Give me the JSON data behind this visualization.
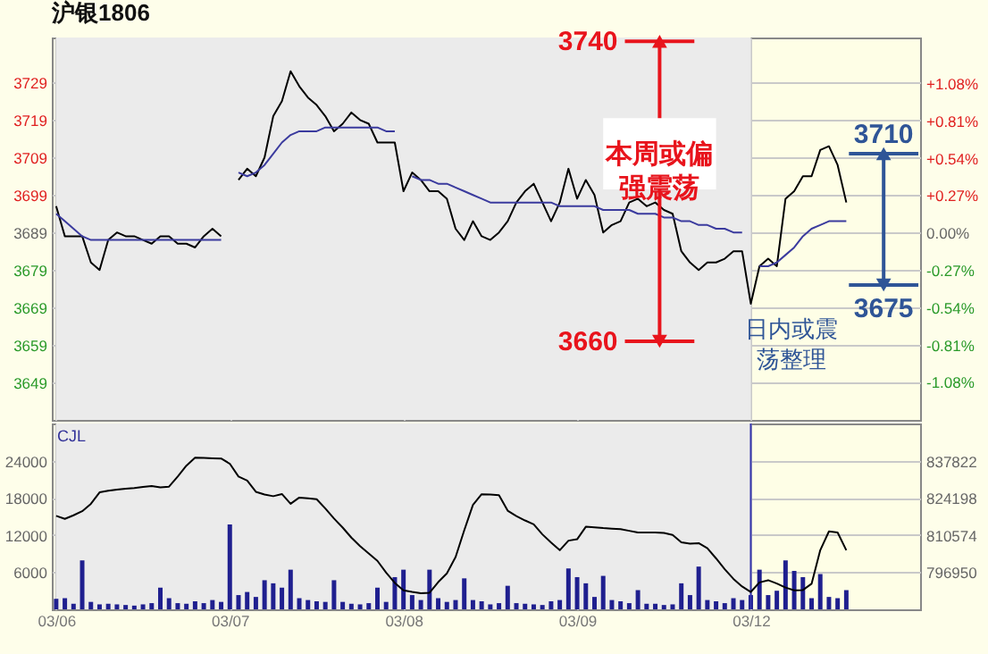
{
  "chart_data": [
    {
      "type": "line",
      "title": "沪银1806",
      "annotations": [
        "本周或偏强震荡",
        "日内或震荡整理"
      ],
      "categories": [
        "03/06",
        null,
        null,
        null,
        null,
        null,
        null,
        null,
        null,
        null,
        null,
        null,
        null,
        null,
        null,
        null,
        null,
        null,
        null,
        null,
        "03/07",
        null,
        null,
        null,
        null,
        null,
        null,
        null,
        null,
        null,
        null,
        null,
        null,
        null,
        null,
        null,
        null,
        null,
        null,
        null,
        "03/08",
        null,
        null,
        null,
        null,
        null,
        null,
        null,
        null,
        null,
        null,
        null,
        null,
        null,
        null,
        null,
        null,
        null,
        null,
        null,
        "03/09",
        null,
        null,
        null,
        null,
        null,
        null,
        null,
        null,
        null,
        null,
        null,
        null,
        null,
        null,
        null,
        null,
        null,
        null,
        null,
        "03/12",
        null,
        null,
        null,
        null,
        null,
        null,
        null,
        null,
        null,
        null,
        null,
        null,
        null,
        null,
        null,
        null,
        null,
        null,
        null
      ],
      "series": [
        {
          "color": "#000000",
          "values": [
            3696,
            3688,
            3688,
            3688,
            3681,
            3679,
            3687,
            3689,
            3688,
            3688,
            3687,
            3686,
            3688,
            3688,
            3686,
            3686,
            3685,
            3688,
            3690,
            3688,
            null,
            3703,
            3706,
            3704,
            3709,
            3720,
            3724,
            3732,
            3728,
            3725,
            3723,
            3720,
            3716,
            3718,
            3721,
            3719,
            3718,
            3713,
            3713,
            3713,
            3700,
            3705,
            3703,
            3700,
            3700,
            3698,
            3690,
            3687,
            3692,
            3688,
            3687,
            3689,
            3692,
            3697,
            3700,
            3702,
            3697,
            3692,
            3697,
            3706,
            3698,
            3703,
            3699,
            3689,
            3691,
            3692,
            3697,
            3698,
            3696,
            3697,
            3695,
            3694,
            3684,
            3681,
            3679,
            3681,
            3681,
            3682,
            3684,
            3684,
            3670,
            3680,
            3682,
            3680,
            3698,
            3700,
            3704,
            3704,
            3711,
            3712,
            3707,
            3697,
            null,
            null,
            null,
            null,
            null,
            null,
            null,
            null
          ]
        },
        {
          "color": "#3b3b9e",
          "values": [
            3694,
            3692,
            3690,
            3688,
            3687,
            3687,
            3687,
            3687,
            3687,
            3687,
            3687,
            3687,
            3687,
            3687,
            3687,
            3687,
            3687,
            3687,
            3687,
            3687,
            null,
            3705,
            3704,
            3705,
            3707,
            3710,
            3713,
            3715,
            3716,
            3716,
            3716,
            3717,
            3717,
            3717,
            3717,
            3717,
            3717,
            3717,
            3716,
            3716,
            null,
            3704,
            3703,
            3703,
            3702,
            3702,
            3701,
            3700,
            3699,
            3698,
            3697,
            3697,
            3697,
            3697,
            3697,
            3697,
            3697,
            3697,
            3696,
            3696,
            3696,
            3696,
            3696,
            3695,
            3695,
            3695,
            3695,
            3694,
            3694,
            3694,
            3693,
            3693,
            3692,
            3692,
            3691,
            3691,
            3690,
            3690,
            3689,
            3689,
            null,
            3680,
            3680,
            3681,
            3683,
            3685,
            3688,
            3690,
            3691,
            3692,
            3692,
            3692,
            null,
            null,
            null,
            null,
            null,
            null,
            null,
            null
          ]
        }
      ],
      "ylim": [
        3639,
        3741
      ],
      "yticks": [
        3649,
        3659,
        3669,
        3679,
        3689,
        3699,
        3709,
        3719,
        3729
      ],
      "y2lim": [
        -1.355,
        1.41
      ],
      "y2ticks": [
        {
          "value": -1.08,
          "label": "-1.08%"
        },
        {
          "value": -0.81,
          "label": "-0.81%"
        },
        {
          "value": -0.54,
          "label": "-0.54%"
        },
        {
          "value": -0.27,
          "label": "-0.27%"
        },
        {
          "value": 0,
          "label": "0.00%"
        },
        {
          "value": 0.27,
          "label": "+0.27%"
        },
        {
          "value": 0.54,
          "label": "+0.54%"
        },
        {
          "value": 0.81,
          "label": "+0.81%"
        },
        {
          "value": 1.08,
          "label": "+1.08%"
        }
      ],
      "ref_lines": [
        {
          "axis": "y",
          "value": 3740,
          "label": "3740",
          "color": "#e8141c"
        },
        {
          "axis": "y",
          "value": 3660,
          "label": "3660",
          "color": "#e8141c"
        },
        {
          "axis": "y",
          "value": 3710,
          "label": "3710",
          "color": "#2f5597"
        },
        {
          "axis": "y",
          "value": 3675,
          "label": "3675",
          "color": "#2f5597"
        }
      ],
      "bands": [
        {
          "axis": "x",
          "from": "03/06",
          "to": "03/12",
          "color": "#ebebeb"
        }
      ],
      "grid": true,
      "tick_labels": "y"
    },
    {
      "type": "bar",
      "annotations": [
        "CJL"
      ],
      "categories": [
        "03/06",
        null,
        null,
        null,
        null,
        null,
        null,
        null,
        null,
        null,
        null,
        null,
        null,
        null,
        null,
        null,
        null,
        null,
        null,
        null,
        "03/07",
        null,
        null,
        null,
        null,
        null,
        null,
        null,
        null,
        null,
        null,
        null,
        null,
        null,
        null,
        null,
        null,
        null,
        null,
        null,
        "03/08",
        null,
        null,
        null,
        null,
        null,
        null,
        null,
        null,
        null,
        null,
        null,
        null,
        null,
        null,
        null,
        null,
        null,
        null,
        null,
        "03/09",
        null,
        null,
        null,
        null,
        null,
        null,
        null,
        null,
        null,
        null,
        null,
        null,
        null,
        null,
        null,
        null,
        null,
        null,
        null,
        "03/12",
        null,
        null,
        null,
        null,
        null,
        null,
        null,
        null,
        null,
        null,
        null,
        null,
        null,
        null,
        null,
        null,
        null,
        null,
        null
      ],
      "series": [
        {
          "color": "#1f1f8f",
          "values": [
            1700,
            1800,
            900,
            7900,
            1200,
            800,
            900,
            800,
            700,
            600,
            800,
            1000,
            3500,
            1800,
            1000,
            900,
            1300,
            1000,
            1500,
            1200,
            13700,
            2300,
            2800,
            2000,
            4700,
            4200,
            3500,
            6400,
            1800,
            1500,
            1300,
            1200,
            4700,
            1200,
            900,
            800,
            1000,
            3500,
            1200,
            5200,
            6400,
            2300,
            1500,
            6400,
            1800,
            1200,
            1500,
            5000,
            1500,
            1300,
            800,
            1000,
            3800,
            1000,
            900,
            800,
            700,
            1300,
            1500,
            6600,
            5200,
            4200,
            2000,
            5400,
            1500,
            1300,
            1000,
            3100,
            900,
            900,
            700,
            800,
            4200,
            2300,
            6900,
            1500,
            1300,
            1000,
            1800,
            1500,
            2300,
            6400,
            2300,
            3000,
            7900,
            6200,
            5200,
            1800,
            5700,
            2000,
            1800,
            3100,
            null,
            null,
            null,
            null,
            null,
            null,
            null,
            null
          ]
        },
        {
          "type": "line",
          "axis": "y2",
          "color": "#000000",
          "values": [
            817600,
            816500,
            817800,
            819300,
            822000,
            826200,
            826800,
            827200,
            827500,
            827800,
            828200,
            828500,
            828000,
            828300,
            832000,
            836000,
            838900,
            838800,
            838700,
            838600,
            836700,
            832000,
            830500,
            826400,
            825400,
            824800,
            825600,
            822000,
            824300,
            824000,
            823700,
            820300,
            816600,
            813300,
            809600,
            806500,
            803800,
            801100,
            796800,
            793000,
            790300,
            789700,
            789200,
            789400,
            793300,
            796500,
            802500,
            812300,
            821600,
            825500,
            825400,
            825200,
            819500,
            817500,
            815900,
            814500,
            810800,
            807800,
            805000,
            808500,
            809000,
            813600,
            813400,
            813100,
            812900,
            812700,
            812100,
            811500,
            811500,
            811500,
            811300,
            810600,
            807900,
            807400,
            807600,
            805700,
            802000,
            798000,
            794500,
            791700,
            789700,
            793200,
            794000,
            792800,
            791300,
            790300,
            790400,
            792700,
            805000,
            811900,
            811500,
            805000,
            null,
            null,
            null,
            null,
            null,
            null,
            null,
            null
          ]
        }
      ],
      "ylim": [
        0,
        30000
      ],
      "yticks": [
        6000,
        12000,
        18000,
        24000
      ],
      "y2lim": [
        783326,
        851446
      ],
      "y2ticks": [
        796950,
        810574,
        824198,
        837822
      ],
      "bands": [
        {
          "axis": "x",
          "from": "03/06",
          "to": "03/12",
          "color": "#ebebeb"
        }
      ],
      "ref_lines": [
        {
          "axis": "x",
          "value": "03/12",
          "color": "#3333aa"
        }
      ],
      "grid": true
    }
  ]
}
